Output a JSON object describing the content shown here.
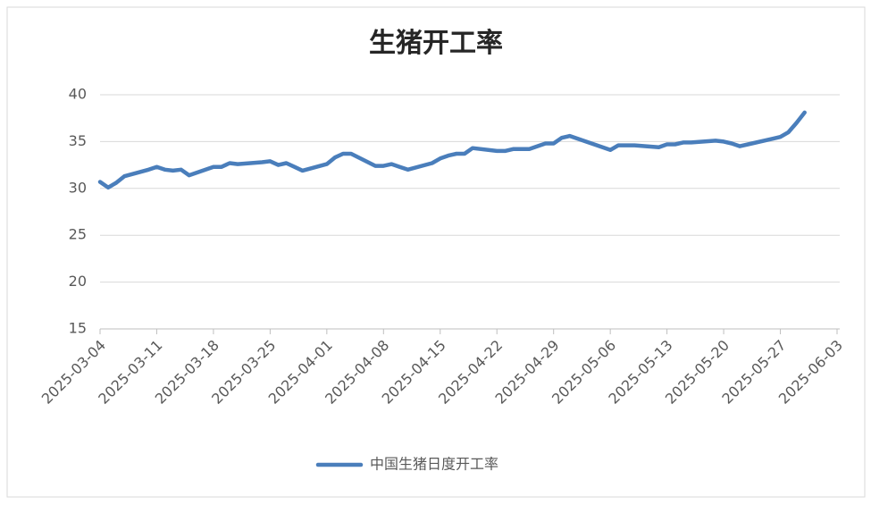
{
  "chart_data": {
    "type": "line",
    "title": "生猪开工率",
    "x": [
      "2025-03-04",
      "2025-03-05",
      "2025-03-06",
      "2025-03-07",
      "2025-03-10",
      "2025-03-11",
      "2025-03-12",
      "2025-03-13",
      "2025-03-14",
      "2025-03-15",
      "2025-03-18",
      "2025-03-19",
      "2025-03-20",
      "2025-03-21",
      "2025-03-24",
      "2025-03-25",
      "2025-03-26",
      "2025-03-27",
      "2025-03-28",
      "2025-03-29",
      "2025-04-01",
      "2025-04-02",
      "2025-04-03",
      "2025-04-04",
      "2025-04-07",
      "2025-04-08",
      "2025-04-09",
      "2025-04-10",
      "2025-04-11",
      "2025-04-14",
      "2025-04-15",
      "2025-04-16",
      "2025-04-17",
      "2025-04-18",
      "2025-04-19",
      "2025-04-22",
      "2025-04-23",
      "2025-04-24",
      "2025-04-25",
      "2025-04-26",
      "2025-04-28",
      "2025-04-29",
      "2025-04-30",
      "2025-05-01",
      "2025-05-06",
      "2025-05-07",
      "2025-05-08",
      "2025-05-09",
      "2025-05-12",
      "2025-05-13",
      "2025-05-14",
      "2025-05-15",
      "2025-05-16",
      "2025-05-19",
      "2025-05-20",
      "2025-05-21",
      "2025-05-22",
      "2025-05-23",
      "2025-05-26",
      "2025-05-27",
      "2025-05-28",
      "2025-05-29",
      "2025-05-30"
    ],
    "series": [
      {
        "name": "中国生猪日度开工率",
        "color": "#4a7ebb",
        "values": [
          30.7,
          30.1,
          30.6,
          31.3,
          32.0,
          32.3,
          32.0,
          31.9,
          32.0,
          31.4,
          32.3,
          32.3,
          32.7,
          32.6,
          32.8,
          32.9,
          32.5,
          32.7,
          32.3,
          31.9,
          32.6,
          33.3,
          33.7,
          33.7,
          32.4,
          32.4,
          32.6,
          32.3,
          32.0,
          32.7,
          33.2,
          33.5,
          33.7,
          33.7,
          34.3,
          34.0,
          34.0,
          34.2,
          34.2,
          34.2,
          34.8,
          34.8,
          35.4,
          35.6,
          34.1,
          34.6,
          34.6,
          34.6,
          34.4,
          34.7,
          34.7,
          34.9,
          34.9,
          35.1,
          35.0,
          34.8,
          34.5,
          34.7,
          35.3,
          35.5,
          36.0,
          37.0,
          38.1
        ]
      }
    ],
    "xlim": [
      "2025-03-04",
      "2025-06-03"
    ],
    "xticks": [
      "2025-03-04",
      "2025-03-11",
      "2025-03-18",
      "2025-03-25",
      "2025-04-01",
      "2025-04-08",
      "2025-04-15",
      "2025-04-22",
      "2025-04-29",
      "2025-05-06",
      "2025-05-13",
      "2025-05-20",
      "2025-05-27",
      "2025-06-03"
    ],
    "ylim": [
      15,
      40
    ],
    "yticks": [
      15,
      20,
      25,
      30,
      35,
      40
    ],
    "grid": true,
    "legend": "bottom"
  }
}
